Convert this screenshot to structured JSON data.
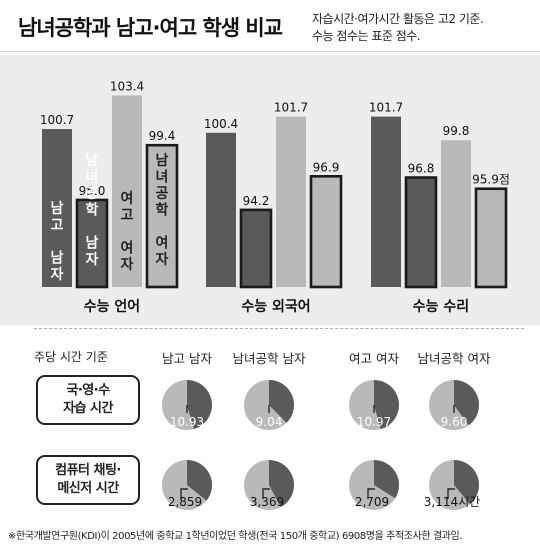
{
  "title": "남녀공학과 남고·여고 학생 비교",
  "note": [
    "자습시간·여가시간 활동은 고2 기준.",
    "수능 점수는 표준 점수."
  ],
  "chart_data": [
    {
      "type": "bar",
      "categories": [
        "수능 언어",
        "수능 외국어",
        "수능 수리"
      ],
      "series": [
        {
          "name": "남고 남자",
          "values": [
            100.7,
            100.4,
            101.7
          ],
          "color": "#5a5a5a",
          "labels": [
            "100.7",
            "100.4",
            "101.7"
          ]
        },
        {
          "name": "남녀공학 남자",
          "values": [
            95.0,
            94.2,
            96.8
          ],
          "color": "#5a5a5a",
          "outlined": true,
          "labels": [
            "95.0",
            "94.2",
            "96.8"
          ]
        },
        {
          "name": "여고 여자",
          "values": [
            103.4,
            101.7,
            99.8
          ],
          "color": "#b9b9b9",
          "labels": [
            "103.4",
            "101.7",
            "99.8"
          ]
        },
        {
          "name": "남녀공학 여자",
          "values": [
            99.4,
            96.9,
            95.9
          ],
          "color": "#b9b9b9",
          "outlined": true,
          "labels": [
            "99.4",
            "96.9",
            "95.9점"
          ]
        }
      ],
      "vertical_labels": [
        "남고 남자",
        "남녀공학 남자",
        "여고 여자",
        "남녀공학 여자"
      ]
    },
    {
      "type": "pie",
      "basis": "주당 시간 기준",
      "columns": [
        "남고 남자",
        "남녀공학 남자",
        "여고 여자",
        "남녀공학 여자"
      ],
      "rows": [
        {
          "label": [
            "국·영·수",
            "자습 시간"
          ],
          "values": [
            10.93,
            9.04,
            10.97,
            9.6
          ],
          "labels": [
            "10.93",
            "9.04",
            "10.97",
            "9.60"
          ]
        },
        {
          "label": [
            "컴퓨터 채팅·",
            "메신저 시간"
          ],
          "values": [
            2.859,
            3.369,
            2.709,
            3.114
          ],
          "labels": [
            "2,859",
            "3,369",
            "2,709",
            "3,114시간"
          ]
        }
      ]
    }
  ],
  "footnote": "※한국개발연구원(KDI)이 2005년에 중학교 1학년이었던 학생(전국 150개 중학교) 6908명을 추적조사한 결과임.",
  "colors": {
    "dark": "#5a5a5a",
    "light": "#b9b9b9",
    "panel": "#ededed",
    "outline": "#1a1a1a"
  }
}
